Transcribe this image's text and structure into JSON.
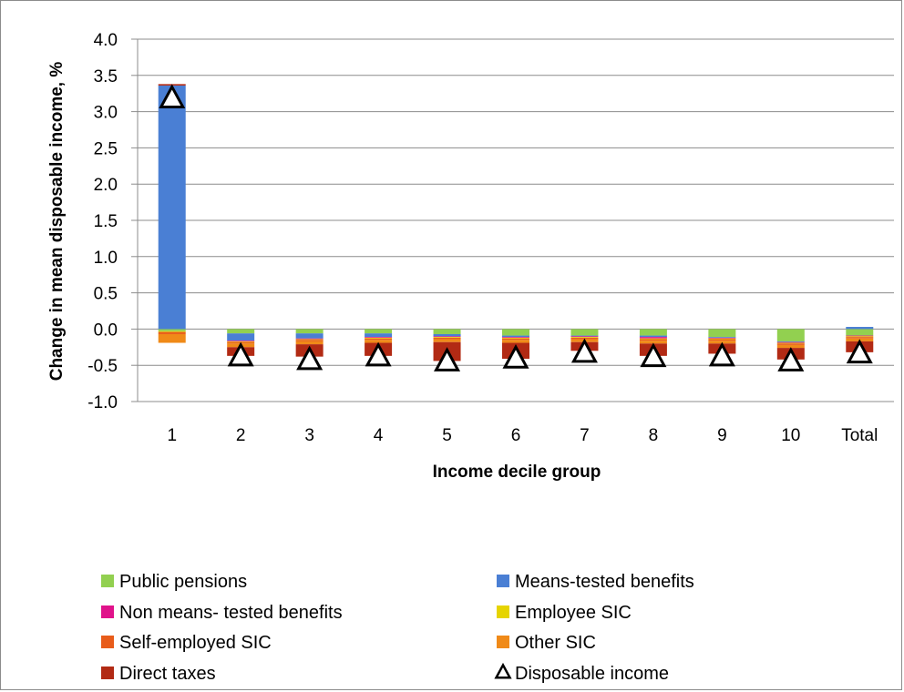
{
  "chart_data": {
    "type": "bar",
    "stacked": true,
    "title": "",
    "xlabel": "Income decile group",
    "ylabel": "Change in mean disposable income, %",
    "ylim": [
      -1.0,
      4.0
    ],
    "yticks": [
      "4.0",
      "3.5",
      "3.0",
      "2.5",
      "2.0",
      "1.5",
      "1.0",
      "0.5",
      "0.0",
      "-0.5",
      "-1.0"
    ],
    "grid": true,
    "legend_position": "bottom",
    "categories": [
      "1",
      "2",
      "3",
      "4",
      "5",
      "6",
      "7",
      "8",
      "9",
      "10",
      "Total"
    ],
    "series": [
      {
        "name": "Public pensions",
        "color": "#92d050",
        "values": [
          -0.03,
          -0.06,
          -0.06,
          -0.06,
          -0.07,
          -0.09,
          -0.09,
          -0.09,
          -0.11,
          -0.17,
          -0.09
        ]
      },
      {
        "name": "Means-tested benefits",
        "color": "#4a7fd4",
        "values": [
          3.36,
          -0.1,
          -0.07,
          -0.05,
          -0.03,
          -0.02,
          -0.01,
          -0.02,
          -0.01,
          -0.01,
          0.03
        ]
      },
      {
        "name": "Non means- tested benefits",
        "color": "#e0128b",
        "values": [
          0.0,
          -0.01,
          -0.01,
          -0.01,
          -0.01,
          -0.01,
          -0.01,
          -0.02,
          -0.01,
          -0.01,
          -0.01
        ]
      },
      {
        "name": "Employee SIC",
        "color": "#e6d400",
        "values": [
          -0.01,
          -0.01,
          -0.01,
          -0.01,
          -0.01,
          -0.01,
          -0.01,
          -0.01,
          -0.01,
          -0.01,
          -0.01
        ]
      },
      {
        "name": "Self-employed SIC",
        "color": "#e85c1a",
        "values": [
          -0.03,
          -0.02,
          -0.02,
          -0.02,
          -0.02,
          -0.02,
          -0.02,
          -0.02,
          -0.02,
          -0.02,
          -0.02
        ]
      },
      {
        "name": "Other SIC",
        "color": "#f08a18",
        "values": [
          -0.12,
          -0.05,
          -0.04,
          -0.04,
          -0.04,
          -0.04,
          -0.04,
          -0.04,
          -0.04,
          -0.04,
          -0.04
        ]
      },
      {
        "name": "Direct taxes",
        "color": "#b22a14",
        "values": [
          0.02,
          -0.12,
          -0.17,
          -0.18,
          -0.26,
          -0.22,
          -0.12,
          -0.17,
          -0.14,
          -0.16,
          -0.15
        ]
      }
    ],
    "disposable_income": {
      "name": "Disposable income",
      "marker": "triangle",
      "values": [
        3.17,
        -0.39,
        -0.44,
        -0.39,
        -0.46,
        -0.42,
        -0.34,
        -0.4,
        -0.39,
        -0.46,
        -0.35
      ]
    }
  }
}
